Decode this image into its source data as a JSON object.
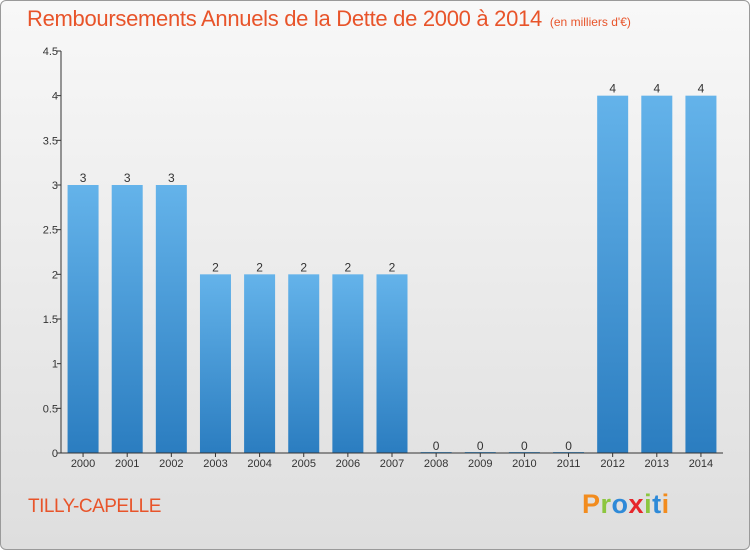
{
  "chart_data": {
    "type": "bar",
    "title": "Remboursements Annuels de la Dette de 2000 à 2014",
    "unit": "(en milliers d'€)",
    "categories": [
      "2000",
      "2001",
      "2002",
      "2003",
      "2004",
      "2005",
      "2006",
      "2007",
      "2008",
      "2009",
      "2010",
      "2011",
      "2012",
      "2013",
      "2014"
    ],
    "values": [
      3,
      3,
      3,
      2,
      2,
      2,
      2,
      2,
      0,
      0,
      0,
      0,
      4,
      4,
      4
    ],
    "data_labels": [
      "3",
      "3",
      "3",
      "2",
      "2",
      "2",
      "2",
      "2",
      "0",
      "0",
      "0",
      "0",
      "4",
      "4",
      "4"
    ],
    "yticks": [
      "0",
      "0.5",
      "1",
      "1.5",
      "2",
      "2.5",
      "3",
      "3.5",
      "4",
      "4.5"
    ],
    "ylim": [
      0,
      4.5
    ],
    "xlabel": "",
    "ylabel": "",
    "grid": false,
    "bar_color": "#4a9fdf"
  },
  "footer": {
    "city": "TILLY-CAPELLE",
    "logo_text": "Proxiti",
    "logo_colors": [
      "#f28c1e",
      "#8cc63f",
      "#2e8ad8",
      "#e6262b",
      "#8cc63f",
      "#2e8ad8",
      "#f28c1e"
    ]
  }
}
